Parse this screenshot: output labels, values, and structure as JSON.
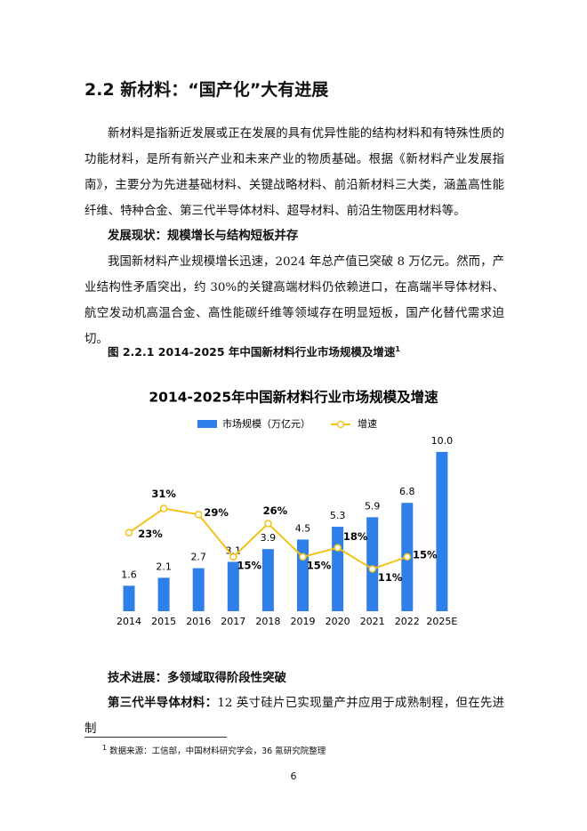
{
  "heading": "2.2 新材料：“国产化”大有进展",
  "intro": "新材料是指新近发展或正在发展的具有优异性能的结构材料和有特殊性质的功能材料，是所有新兴产业和未来产业的物质基础。根据《新材料产业发展指南》，主要分为先进基础材料、关键战略材料、前沿新材料三大类，涵盖高性能纤维、特种合金、第三代半导体材料、超导材料、前沿生物医用材料等。",
  "section1": {
    "label": "发展现状：规模增长与结构短板并存",
    "text": "我国新材料产业规模增长迅速，2024 年总产值已突破 8 万亿元。然而，产业结构性矛盾突出，约 30%的关键高端材料仍依赖进口，在高端半导体材料、航空发动机高温合金、高性能碳纤维等领域存在明显短板，国产化替代需求迫切。"
  },
  "figure_caption": "图 2.2.1 2014-2025 年中国新材料行业市场规模及增速",
  "caption_note": "1",
  "chart_data": {
    "type": "bar-line",
    "title": "2014-2025年中国新材料行业市场规模及增速",
    "categories": [
      "2014",
      "2015",
      "2016",
      "2017",
      "2018",
      "2019",
      "2020",
      "2021",
      "2022",
      "2025E"
    ],
    "series": [
      {
        "name": "市场规模（万亿元）",
        "type": "bar",
        "color": "#2f7fe9",
        "values": [
          1.6,
          2.1,
          2.7,
          3.1,
          3.9,
          4.5,
          5.3,
          5.9,
          6.8,
          10.0
        ],
        "value_labels": [
          "1.6",
          "2.1",
          "2.7",
          "3.1",
          "3.9",
          "4.5",
          "5.3",
          "5.9",
          "6.8",
          "10.0"
        ]
      },
      {
        "name": "增速",
        "type": "line",
        "axis": "y2",
        "color": "#f2c21b",
        "values": [
          23,
          31,
          29,
          15,
          26,
          15,
          18,
          11,
          15,
          null
        ],
        "value_labels": [
          "23%",
          "31%",
          "29%",
          "15%",
          "26%",
          "15%",
          "18%",
          "11%",
          "15%",
          null
        ]
      }
    ],
    "ylim": [
      0,
      11
    ],
    "y2lim": [
      -3,
      55
    ],
    "legend": "top"
  },
  "section2": {
    "label": "技术进展：多领域取得阶段性突破"
  },
  "para3": {
    "label": "第三代半导体材料：",
    "text": "12 英寸硅片已实现量产并应用于成熟制程，但在先进制"
  },
  "footnote": {
    "mark": "1",
    "text": "数据来源：工信部，中国材料研究学会，36 氪研究院整理"
  },
  "page_number": "6"
}
